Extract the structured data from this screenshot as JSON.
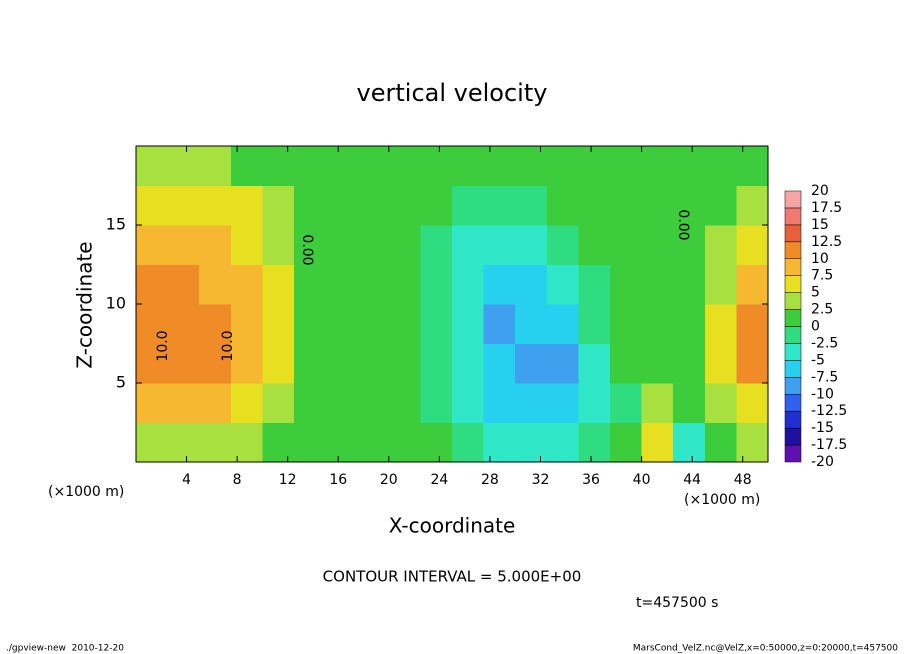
{
  "chart_data": {
    "type": "contour",
    "title": "vertical velocity",
    "x_label": "X-coordinate",
    "y_label": "Z-coordinate",
    "x_unit": "(×1000 m)",
    "y_unit": "(×1000 m)",
    "xlim": [
      0,
      50
    ],
    "ylim": [
      0,
      20
    ],
    "xticks": [
      4,
      8,
      12,
      16,
      20,
      24,
      28,
      32,
      36,
      40,
      44,
      48
    ],
    "yticks": [
      5,
      10,
      15
    ],
    "x": [
      1.25,
      3.75,
      6.25,
      8.75,
      11.25,
      13.75,
      16.25,
      18.75,
      21.25,
      23.75,
      26.25,
      28.75,
      31.25,
      33.75,
      36.25,
      38.75,
      41.25,
      43.75,
      46.25,
      48.75
    ],
    "z": [
      1.25,
      3.75,
      6.25,
      8.75,
      11.25,
      13.75,
      16.25,
      18.75
    ],
    "values": [
      [
        4,
        4,
        3,
        3,
        2,
        1,
        0,
        1,
        0,
        0,
        -1,
        -4,
        -5,
        -3,
        -1,
        0,
        7,
        -3,
        1,
        3
      ],
      [
        9,
        8,
        8,
        7,
        4,
        1,
        1,
        0,
        0,
        -1,
        -3,
        -6,
        -7,
        -6,
        -3,
        -1,
        4,
        1,
        3,
        7
      ],
      [
        11,
        10,
        12,
        9,
        5,
        1,
        1,
        0,
        0,
        -2,
        -4,
        -7,
        -8,
        -8,
        -4,
        0,
        1,
        1,
        5,
        11
      ],
      [
        12,
        11,
        12,
        9,
        5,
        1,
        1,
        0,
        0,
        -2,
        -5,
        -8,
        -7,
        -6,
        -2,
        0,
        0,
        1,
        5,
        11
      ],
      [
        11,
        11,
        9,
        8,
        5,
        1,
        1,
        0,
        0,
        -1,
        -4,
        -7,
        -6,
        -3,
        -1,
        0,
        0,
        0,
        4,
        8
      ],
      [
        9,
        8,
        8,
        7,
        4,
        1,
        1,
        0,
        0,
        -1,
        -3,
        -5,
        -3,
        -1,
        0,
        0,
        0,
        0,
        3,
        6
      ],
      [
        6,
        5,
        5,
        5,
        3,
        1,
        1,
        0,
        0,
        0,
        -1,
        -2,
        -1,
        0,
        0,
        0,
        0,
        0,
        1,
        3
      ],
      [
        3,
        3,
        3,
        2,
        1,
        0,
        1,
        0,
        0,
        0,
        0,
        0,
        0,
        0,
        0,
        0,
        0,
        0,
        1,
        2
      ]
    ],
    "colorbar": {
      "levels": [
        -20,
        -17.5,
        -15,
        -12.5,
        -10,
        -7.5,
        -5,
        -2.5,
        0,
        2.5,
        5,
        7.5,
        10,
        12.5,
        15,
        17.5,
        20
      ],
      "colors": [
        "#6010b0",
        "#2010a0",
        "#2030d0",
        "#3060f0",
        "#40a0f0",
        "#28d0f0",
        "#30e8c8",
        "#30dc80",
        "#3ccc3c",
        "#a8e040",
        "#e6e020",
        "#f5b830",
        "#f08c28",
        "#e8603a",
        "#f07a70",
        "#f4a6a6"
      ]
    },
    "contour_labels": [
      "10.0",
      "10.0",
      "0.00",
      "0.00"
    ],
    "contour_interval": "CONTOUR INTERVAL = 5.000E+00",
    "time": "t=457500 s",
    "footer_left": "./gpview-new  2010-12-20",
    "footer_right": "MarsCond_VelZ.nc@VelZ,x=0:50000,z=0:20000,t=457500"
  }
}
